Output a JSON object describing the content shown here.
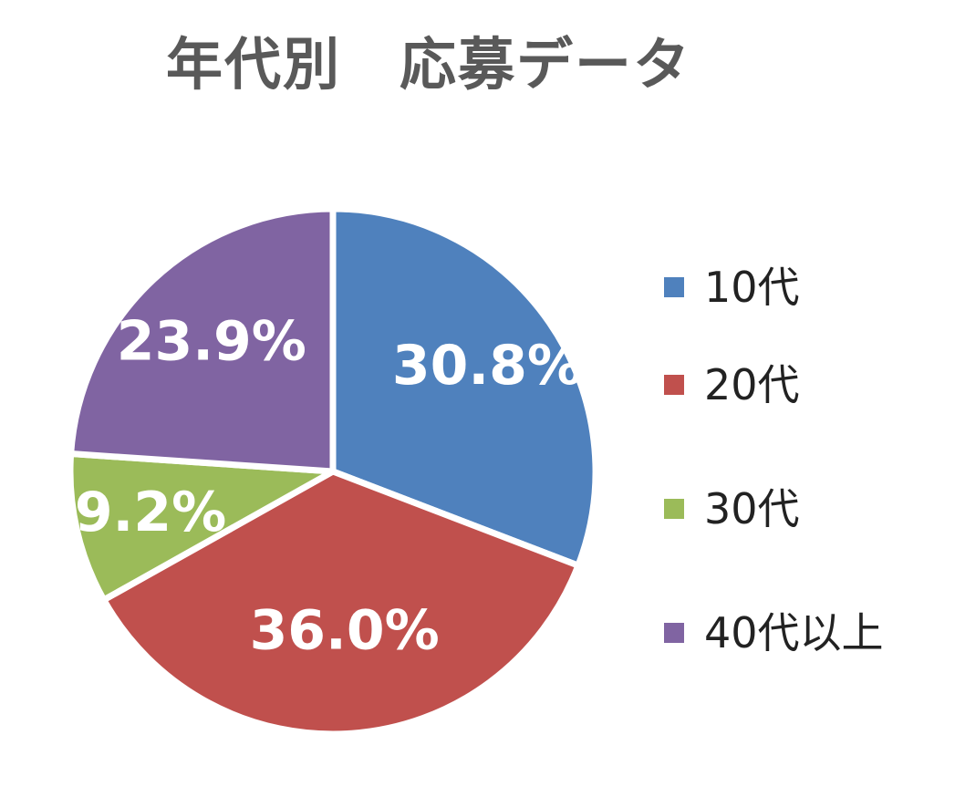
{
  "chart_data": {
    "type": "pie",
    "title": "年代別　応募データ",
    "categories": [
      "10代",
      "20代",
      "30代",
      "40代以上"
    ],
    "values": [
      30.8,
      36.0,
      9.2,
      23.9
    ],
    "value_labels": [
      "30.8%",
      "36.0%",
      "9.2%",
      "23.9%"
    ],
    "colors": [
      "#4F81BD",
      "#C0504D",
      "#9BBB59",
      "#8064A2"
    ],
    "start_angle_deg": 0,
    "direction": "clockwise",
    "legend_position": "right"
  }
}
